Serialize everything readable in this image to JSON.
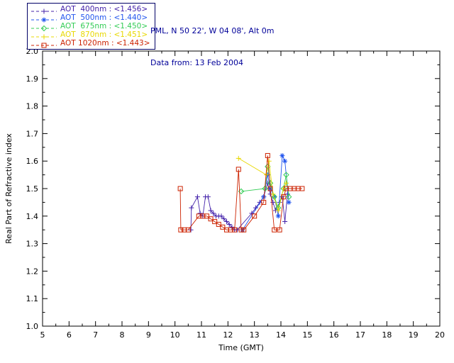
{
  "header": {
    "line1": "PML, N 50 22', W 04 08', Alt 0m",
    "line2": "Data from: 13 Feb 2004"
  },
  "legend": {
    "items": [
      {
        "label": "AOT  400nm : <1.456>",
        "wavelength": "400nm",
        "mean": 1.456,
        "color": "#4422aa",
        "symbol": "plus"
      },
      {
        "label": "AOT  500nm : <1.440>",
        "wavelength": "500nm",
        "mean": 1.44,
        "color": "#2255ee",
        "symbol": "asterisk"
      },
      {
        "label": "AOT  675nm : <1.450>",
        "wavelength": "675nm",
        "mean": 1.45,
        "color": "#33cc55",
        "symbol": "diamond"
      },
      {
        "label": "AOT  870nm : <1.451>",
        "wavelength": "870nm",
        "mean": 1.451,
        "color": "#e8d800",
        "symbol": "plus"
      },
      {
        "label": "AOT 1020nm : <1.443>",
        "wavelength": "1020nm",
        "mean": 1.443,
        "color": "#cc2200",
        "symbol": "square"
      }
    ]
  },
  "chart_data": {
    "type": "scatter",
    "title": "",
    "xlabel": "Time (GMT)",
    "ylabel": "Real Part of Refractive index",
    "xlim": [
      5,
      20
    ],
    "ylim": [
      1.0,
      2.0
    ],
    "x_ticks": [
      5,
      6,
      7,
      8,
      9,
      10,
      11,
      12,
      13,
      14,
      15,
      16,
      17,
      18,
      19,
      20
    ],
    "y_ticks": [
      1.0,
      1.1,
      1.2,
      1.3,
      1.4,
      1.5,
      1.6,
      1.7,
      1.8,
      1.9,
      2.0
    ],
    "grid": false,
    "legend_position": "top-left-outside",
    "series": [
      {
        "name": "AOT 400nm",
        "color": "#4422aa",
        "symbol": "plus",
        "points": [
          [
            10.6,
            1.35
          ],
          [
            10.62,
            1.43
          ],
          [
            10.85,
            1.47
          ],
          [
            10.95,
            1.41
          ],
          [
            11.05,
            1.4
          ],
          [
            11.15,
            1.47
          ],
          [
            11.25,
            1.47
          ],
          [
            11.35,
            1.42
          ],
          [
            11.45,
            1.41
          ],
          [
            11.55,
            1.4
          ],
          [
            11.65,
            1.4
          ],
          [
            11.75,
            1.4
          ],
          [
            11.85,
            1.39
          ],
          [
            11.95,
            1.38
          ],
          [
            12.05,
            1.37
          ],
          [
            12.15,
            1.36
          ],
          [
            12.25,
            1.35
          ],
          [
            12.35,
            1.35
          ],
          [
            12.9,
            1.41
          ],
          [
            13.05,
            1.43
          ],
          [
            13.2,
            1.45
          ],
          [
            13.35,
            1.47
          ],
          [
            13.5,
            1.52
          ],
          [
            13.6,
            1.48
          ],
          [
            13.7,
            1.45
          ],
          [
            13.8,
            1.42
          ],
          [
            13.95,
            1.45
          ],
          [
            14.05,
            1.47
          ],
          [
            14.15,
            1.38
          ],
          [
            14.25,
            1.48
          ]
        ]
      },
      {
        "name": "AOT 500nm",
        "color": "#2255ee",
        "symbol": "asterisk",
        "points": [
          [
            12.55,
            1.35
          ],
          [
            13.35,
            1.47
          ],
          [
            13.5,
            1.55
          ],
          [
            13.6,
            1.5
          ],
          [
            13.75,
            1.47
          ],
          [
            13.9,
            1.4
          ],
          [
            14.05,
            1.62
          ],
          [
            14.15,
            1.6
          ],
          [
            14.3,
            1.45
          ]
        ]
      },
      {
        "name": "AOT 675nm",
        "color": "#33cc55",
        "symbol": "diamond",
        "points": [
          [
            12.5,
            1.49
          ],
          [
            13.4,
            1.5
          ],
          [
            13.5,
            1.58
          ],
          [
            13.6,
            1.52
          ],
          [
            13.75,
            1.47
          ],
          [
            13.9,
            1.43
          ],
          [
            14.1,
            1.5
          ],
          [
            14.2,
            1.55
          ],
          [
            14.3,
            1.47
          ]
        ]
      },
      {
        "name": "AOT 870nm",
        "color": "#e8d800",
        "symbol": "plus",
        "points": [
          [
            12.4,
            1.61
          ],
          [
            13.45,
            1.55
          ],
          [
            13.55,
            1.6
          ],
          [
            13.7,
            1.48
          ],
          [
            13.9,
            1.42
          ],
          [
            14.1,
            1.5
          ],
          [
            14.2,
            1.52
          ]
        ]
      },
      {
        "name": "AOT 1020nm",
        "color": "#cc2200",
        "symbol": "square",
        "points": [
          [
            10.2,
            1.5
          ],
          [
            10.22,
            1.35
          ],
          [
            10.35,
            1.35
          ],
          [
            10.5,
            1.35
          ],
          [
            10.9,
            1.4
          ],
          [
            11.05,
            1.4
          ],
          [
            11.2,
            1.4
          ],
          [
            11.35,
            1.39
          ],
          [
            11.5,
            1.38
          ],
          [
            11.65,
            1.37
          ],
          [
            11.8,
            1.36
          ],
          [
            11.95,
            1.35
          ],
          [
            12.1,
            1.35
          ],
          [
            12.25,
            1.35
          ],
          [
            12.4,
            1.57
          ],
          [
            12.5,
            1.35
          ],
          [
            12.6,
            1.35
          ],
          [
            13.0,
            1.4
          ],
          [
            13.35,
            1.45
          ],
          [
            13.5,
            1.62
          ],
          [
            13.6,
            1.5
          ],
          [
            13.75,
            1.35
          ],
          [
            13.95,
            1.35
          ],
          [
            14.1,
            1.47
          ],
          [
            14.2,
            1.5
          ],
          [
            14.35,
            1.5
          ],
          [
            14.5,
            1.5
          ],
          [
            14.65,
            1.5
          ],
          [
            14.8,
            1.5
          ]
        ]
      }
    ]
  }
}
